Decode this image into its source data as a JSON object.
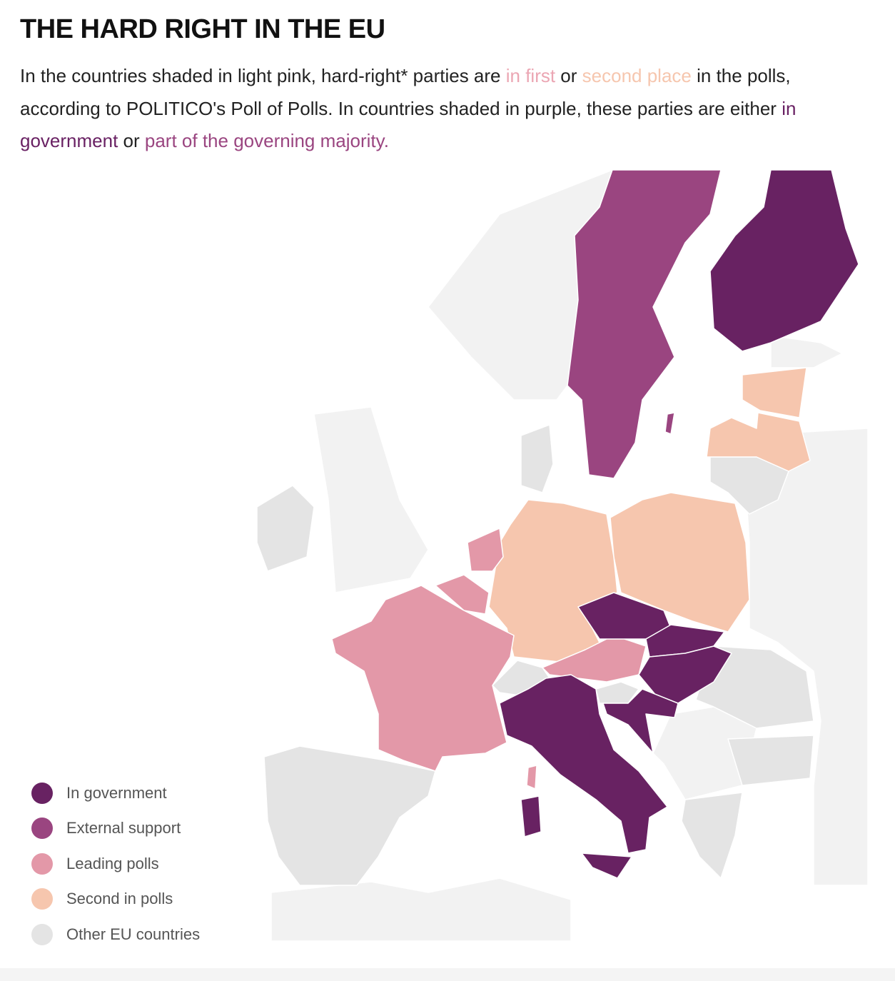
{
  "title": "THE HARD RIGHT IN THE EU",
  "description": [
    {
      "text": "In the countries shaded in light pink, hard-right* parties are "
    },
    {
      "text": "in first",
      "color": "#eba6b3"
    },
    {
      "text": " or "
    },
    {
      "text": "second place",
      "color": "#f6c6ae"
    },
    {
      "text": " in the polls, according to POLITICO's Poll of Polls. In countries shaded in purple, these parties are either "
    },
    {
      "text": "in government",
      "color": "#692163"
    },
    {
      "text": " or "
    },
    {
      "text": "part of the governing majority.",
      "color": "#9a4580"
    }
  ],
  "legend": [
    {
      "label": "In government",
      "color": "#682262"
    },
    {
      "label": "External support",
      "color": "#9a4580"
    },
    {
      "label": "Leading polls",
      "color": "#e398a8"
    },
    {
      "label": "Second in polls",
      "color": "#f6c6ae"
    },
    {
      "label": "Other EU countries",
      "color": "#e4e4e4"
    }
  ]
}
